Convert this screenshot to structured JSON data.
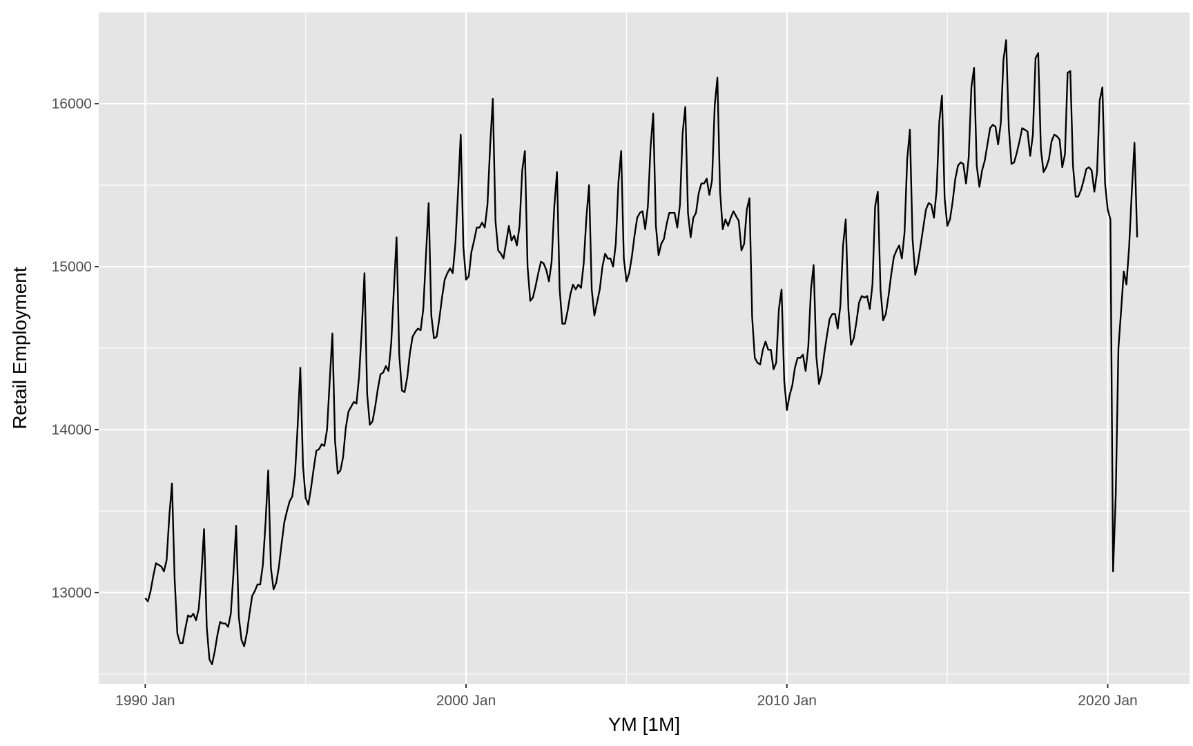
{
  "chart_data": {
    "type": "line",
    "title": "",
    "xlabel": "YM [1M]",
    "ylabel": "Retail Employment",
    "xlim": [
      1988.55,
      2022.55
    ],
    "ylim": [
      12440,
      16560
    ],
    "x_ticks": [
      {
        "value": 1990.0,
        "label": "1990 Jan"
      },
      {
        "value": 2000.0,
        "label": "2000 Jan"
      },
      {
        "value": 2010.0,
        "label": "2010 Jan"
      },
      {
        "value": 2020.0,
        "label": "2020 Jan"
      }
    ],
    "x_minor_ticks": [
      1995.0,
      2005.0,
      2015.0
    ],
    "y_ticks": [
      13000,
      14000,
      15000,
      16000
    ],
    "y_minor_ticks": [
      12500,
      13500,
      14500,
      15500
    ],
    "grid": true,
    "background_color": "#e5e5e5",
    "line_color": "#000000",
    "x_start": "1990 Jan",
    "x_step_months": 1,
    "series": [
      {
        "values": [
          12966,
          12946,
          13010,
          13101,
          13180,
          13170,
          13160,
          13130,
          13200,
          13470,
          13670,
          13080,
          12750,
          12690,
          12690,
          12780,
          12860,
          12850,
          12870,
          12830,
          12900,
          13110,
          13390,
          12790,
          12590,
          12560,
          12640,
          12740,
          12820,
          12810,
          12810,
          12790,
          12870,
          13120,
          13410,
          12850,
          12710,
          12670,
          12750,
          12870,
          12980,
          13010,
          13050,
          13050,
          13170,
          13430,
          13750,
          13150,
          13020,
          13060,
          13160,
          13300,
          13430,
          13500,
          13560,
          13590,
          13720,
          14020,
          14380,
          13780,
          13580,
          13540,
          13640,
          13760,
          13870,
          13880,
          13910,
          13900,
          14000,
          14300,
          14590,
          13930,
          13730,
          13750,
          13830,
          14010,
          14110,
          14140,
          14170,
          14160,
          14330,
          14620,
          14960,
          14220,
          14030,
          14050,
          14140,
          14250,
          14340,
          14350,
          14390,
          14360,
          14530,
          14860,
          15180,
          14460,
          14240,
          14230,
          14320,
          14470,
          14570,
          14600,
          14620,
          14610,
          14740,
          15070,
          15390,
          14700,
          14560,
          14570,
          14680,
          14810,
          14920,
          14960,
          14990,
          14960,
          15140,
          15460,
          15810,
          15120,
          14920,
          14940,
          15090,
          15160,
          15240,
          15240,
          15270,
          15240,
          15380,
          15740,
          16030,
          15280,
          15100,
          15080,
          15050,
          15150,
          15250,
          15160,
          15190,
          15130,
          15250,
          15590,
          15710,
          15000,
          14790,
          14810,
          14880,
          14960,
          15030,
          15020,
          14980,
          14910,
          15030,
          15370,
          15580,
          14860,
          14650,
          14650,
          14730,
          14830,
          14890,
          14860,
          14890,
          14870,
          15020,
          15300,
          15500,
          14860,
          14700,
          14780,
          14860,
          15000,
          15080,
          15050,
          15050,
          15000,
          15140,
          15520,
          15710,
          15050,
          14910,
          14960,
          15060,
          15190,
          15300,
          15330,
          15340,
          15230,
          15370,
          15730,
          15940,
          15250,
          15070,
          15140,
          15170,
          15260,
          15330,
          15330,
          15330,
          15240,
          15380,
          15820,
          15980,
          15330,
          15180,
          15300,
          15330,
          15450,
          15510,
          15510,
          15540,
          15440,
          15530,
          15990,
          16160,
          15460,
          15230,
          15290,
          15250,
          15300,
          15340,
          15310,
          15280,
          15100,
          15140,
          15350,
          15420,
          14690,
          14440,
          14410,
          14400,
          14490,
          14540,
          14490,
          14490,
          14370,
          14410,
          14740,
          14860,
          14300,
          14120,
          14210,
          14270,
          14380,
          14440,
          14440,
          14460,
          14360,
          14510,
          14860,
          15010,
          14450,
          14280,
          14340,
          14470,
          14580,
          14680,
          14710,
          14710,
          14620,
          14760,
          15130,
          15290,
          14740,
          14520,
          14560,
          14660,
          14780,
          14820,
          14810,
          14820,
          14740,
          14890,
          15370,
          15460,
          14860,
          14670,
          14710,
          14820,
          14950,
          15060,
          15100,
          15130,
          15050,
          15210,
          15660,
          15840,
          15170,
          14950,
          15020,
          15130,
          15240,
          15350,
          15390,
          15380,
          15300,
          15470,
          15890,
          16050,
          15420,
          15250,
          15290,
          15400,
          15540,
          15620,
          15640,
          15630,
          15510,
          15670,
          16100,
          16220,
          15620,
          15490,
          15590,
          15650,
          15750,
          15850,
          15870,
          15860,
          15750,
          15880,
          16270,
          16390,
          15850,
          15630,
          15640,
          15700,
          15770,
          15850,
          15840,
          15830,
          15680,
          15810,
          16280,
          16310,
          15720,
          15580,
          15610,
          15660,
          15770,
          15810,
          15800,
          15780,
          15610,
          15690,
          16190,
          16200,
          15620,
          15430,
          15430,
          15470,
          15530,
          15600,
          15610,
          15590,
          15460,
          15580,
          16020,
          16100,
          15510,
          15350,
          15290,
          13130,
          13600,
          14500,
          14730,
          14970,
          14890,
          15120,
          15460,
          15760,
          15180
        ]
      }
    ]
  }
}
